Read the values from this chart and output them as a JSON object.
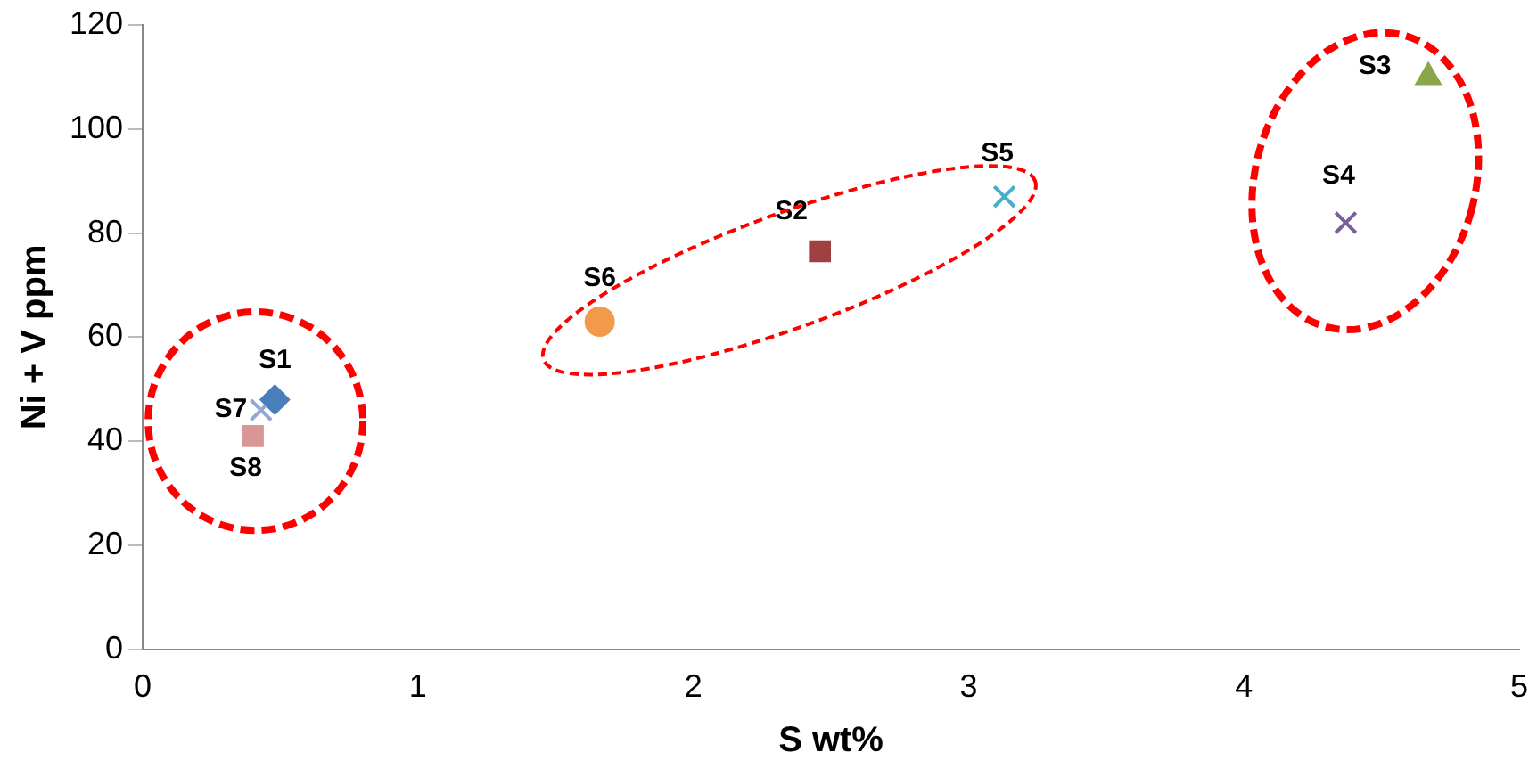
{
  "chart_data": {
    "type": "scatter",
    "xlabel": "S wt%",
    "ylabel": "Ni + V ppm",
    "xlim": [
      0,
      5
    ],
    "xticks": [
      0,
      1,
      2,
      3,
      4,
      5
    ],
    "ylim": [
      0,
      120
    ],
    "yticks": [
      0,
      20,
      40,
      60,
      80,
      100,
      120
    ],
    "grid": false,
    "legend": false,
    "series": [
      {
        "name": "S1",
        "color": "#4a7ebb",
        "marker": "diamond",
        "x": [
          0.48
        ],
        "values": [
          48
        ]
      },
      {
        "name": "S2",
        "color": "#a04040",
        "marker": "square",
        "x": [
          2.46
        ],
        "values": [
          76.5
        ]
      },
      {
        "name": "S3",
        "color": "#8aa64a",
        "marker": "triangle",
        "x": [
          4.67
        ],
        "values": [
          110
        ]
      },
      {
        "name": "S4",
        "color": "#7a5fa0",
        "marker": "cross",
        "x": [
          4.37
        ],
        "values": [
          82
        ]
      },
      {
        "name": "S5",
        "color": "#4bacc6",
        "marker": "cross",
        "x": [
          3.13
        ],
        "values": [
          87
        ]
      },
      {
        "name": "S6",
        "color": "#f39a4a",
        "marker": "circle",
        "x": [
          1.66
        ],
        "values": [
          63
        ]
      },
      {
        "name": "S7",
        "color": "#93a9cf",
        "marker": "cross",
        "x": [
          0.43
        ],
        "values": [
          46
        ]
      },
      {
        "name": "S8",
        "color": "#d99694",
        "marker": "square",
        "x": [
          0.4
        ],
        "values": [
          41
        ]
      }
    ]
  }
}
